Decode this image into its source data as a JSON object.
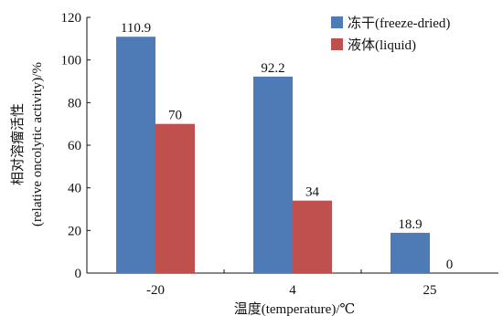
{
  "chart_data": {
    "type": "bar",
    "categories": [
      "-20",
      "4",
      "25"
    ],
    "series": [
      {
        "name": "冻干(freeze-dried)",
        "values": [
          110.9,
          92.2,
          18.9
        ],
        "labels": [
          "110.9",
          "92.2",
          "18.9"
        ],
        "color": "#4e7ab5"
      },
      {
        "name": "液体(liquid)",
        "values": [
          70,
          34,
          0
        ],
        "labels": [
          "70",
          "34",
          "0"
        ],
        "color": "#c0504d"
      }
    ],
    "xlabel": "温度(temperature)/℃",
    "ylabel_lines": [
      "相对溶瘤活性",
      "(relative oncolytic activity)/%"
    ],
    "ylim": [
      0,
      120
    ],
    "yticks": [
      0,
      20,
      40,
      60,
      80,
      100,
      120
    ],
    "grid": false,
    "legend_position": "top-right"
  }
}
